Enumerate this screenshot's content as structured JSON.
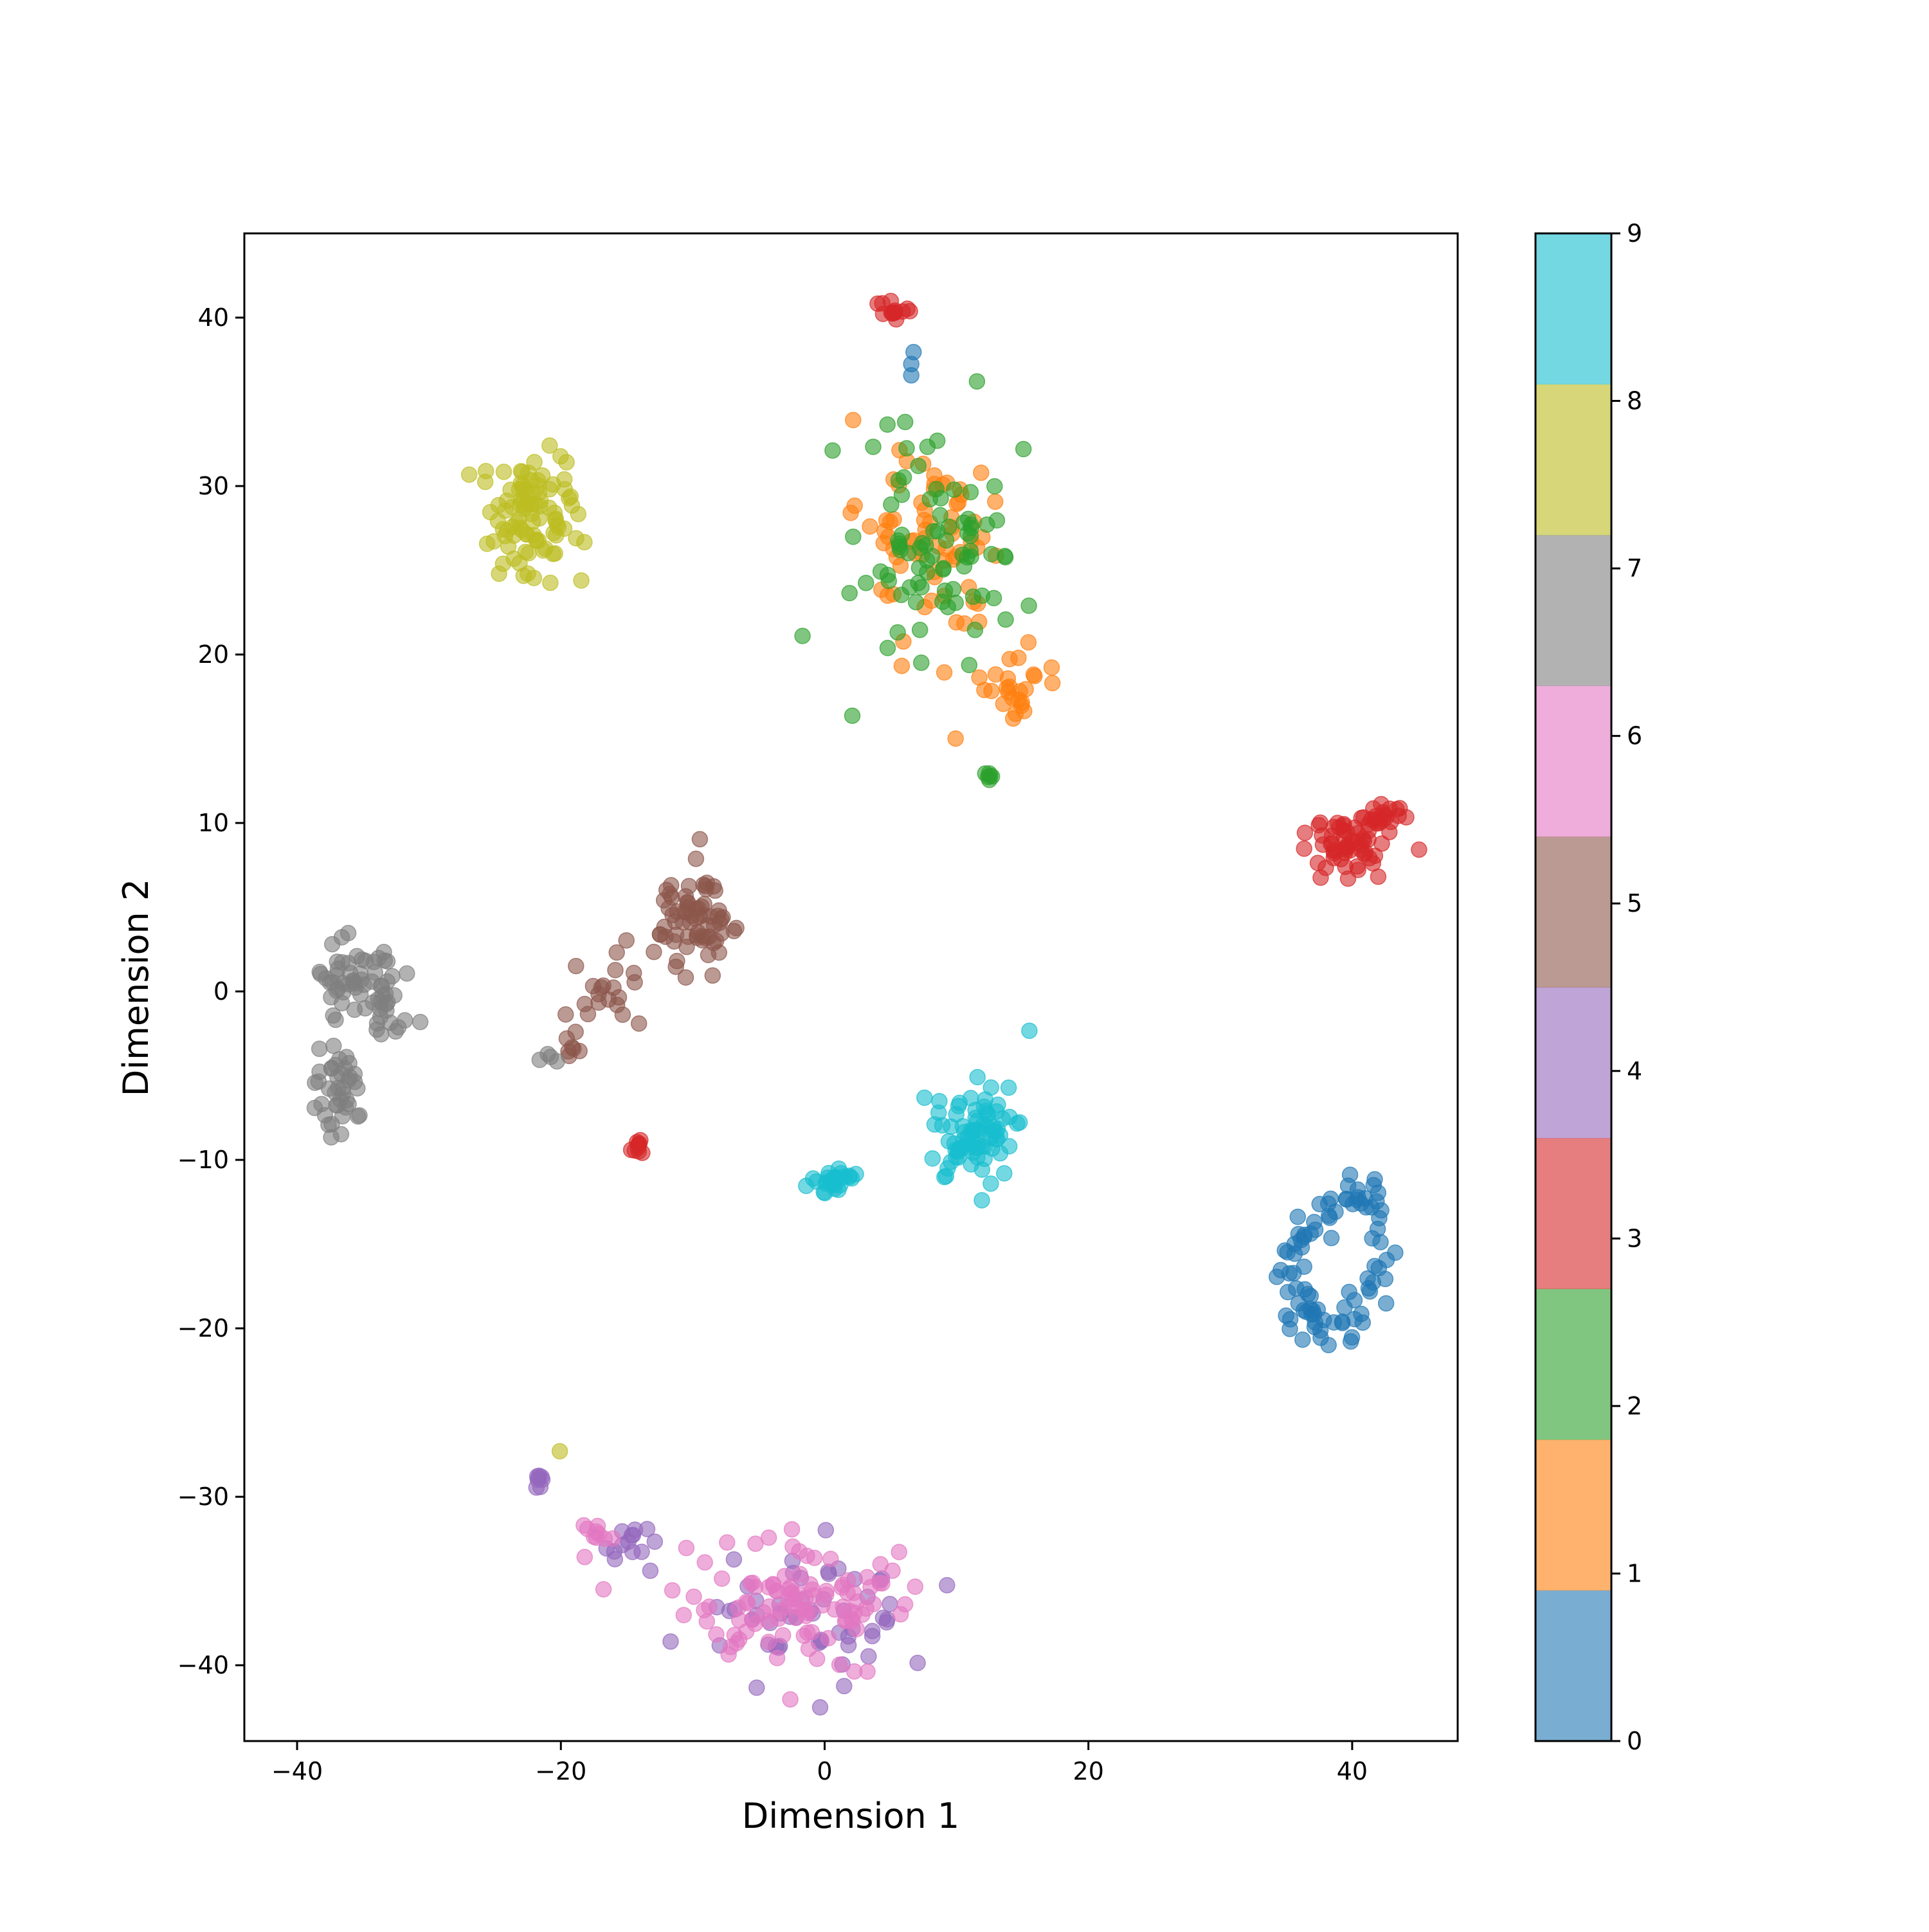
{
  "chart_data": {
    "type": "scatter",
    "title": "",
    "xlabel": "Dimension 1",
    "ylabel": "Dimension 2",
    "xlim": [
      -44,
      48
    ],
    "ylim": [
      -44.5,
      45
    ],
    "xticks": [
      -40,
      -20,
      0,
      20,
      40
    ],
    "xtick_labels": [
      "−40",
      "−20",
      "0",
      "20",
      "40"
    ],
    "yticks": [
      -40,
      -30,
      -20,
      -10,
      0,
      10,
      20,
      30,
      40
    ],
    "ytick_labels": [
      "−40",
      "−30",
      "−20",
      "−10",
      "0",
      "10",
      "20",
      "30",
      "40"
    ],
    "grid": false,
    "colormap": "tab10",
    "point_alpha": 0.6,
    "colorbar": {
      "range": [
        0,
        9
      ],
      "ticks": [
        0,
        1,
        2,
        3,
        4,
        5,
        6,
        7,
        8,
        9
      ],
      "tick_labels": [
        "0",
        "1",
        "2",
        "3",
        "4",
        "5",
        "6",
        "7",
        "8",
        "9"
      ],
      "colors": [
        "#1f77b4",
        "#ff7f0e",
        "#2ca02c",
        "#d62728",
        "#9467bd",
        "#8c564b",
        "#e377c2",
        "#7f7f7f",
        "#bcbd22",
        "#17becf"
      ]
    },
    "clusters": [
      {
        "class": 0,
        "cx": 39.0,
        "cy": -16.0,
        "sx": 1.8,
        "sy": 2.7,
        "n": 90,
        "note_shape": "ring"
      },
      {
        "class": 0,
        "cx": 6.6,
        "cy": 37.2,
        "sx": 0.15,
        "sy": 0.4,
        "n": 3
      },
      {
        "class": 1,
        "cx": 8.5,
        "cy": 26.5,
        "sx": 3.0,
        "sy": 3.3,
        "n": 70
      },
      {
        "class": 1,
        "cx": 14.5,
        "cy": 18.0,
        "sx": 1.2,
        "sy": 1.0,
        "n": 25
      },
      {
        "class": 1,
        "cx": 2.0,
        "cy": 28.3,
        "sx": 0.1,
        "sy": 0.1,
        "n": 1
      },
      {
        "class": 2,
        "cx": 8.5,
        "cy": 26.5,
        "sx": 3.0,
        "sy": 3.5,
        "n": 85
      },
      {
        "class": 2,
        "cx": 12.4,
        "cy": 12.8,
        "sx": 0.15,
        "sy": 0.15,
        "n": 6
      },
      {
        "class": 3,
        "cx": 5.3,
        "cy": 40.2,
        "sx": 0.5,
        "sy": 0.35,
        "n": 14
      },
      {
        "class": 3,
        "cx": 39.5,
        "cy": 8.8,
        "sx": 1.7,
        "sy": 1.0,
        "n": 55
      },
      {
        "class": 3,
        "cx": 42.2,
        "cy": 10.4,
        "sx": 0.9,
        "sy": 0.45,
        "n": 20
      },
      {
        "class": 3,
        "cx": -14.3,
        "cy": -9.3,
        "sx": 0.25,
        "sy": 0.3,
        "n": 10
      },
      {
        "class": 4,
        "cx": -21.7,
        "cy": -29.0,
        "sx": 0.2,
        "sy": 0.3,
        "n": 8
      },
      {
        "class": 4,
        "cx": -15.0,
        "cy": -32.8,
        "sx": 1.0,
        "sy": 0.6,
        "n": 14
      },
      {
        "class": 4,
        "cx": -1.0,
        "cy": -36.8,
        "sx": 4.2,
        "sy": 2.0,
        "n": 55
      },
      {
        "class": 5,
        "cx": -9.8,
        "cy": 4.3,
        "sx": 1.3,
        "sy": 1.5,
        "n": 70
      },
      {
        "class": 5,
        "cx": -16.5,
        "cy": -0.5,
        "sx": 1.4,
        "sy": 1.2,
        "n": 20
      },
      {
        "class": 5,
        "cx": -19.2,
        "cy": -3.5,
        "sx": 0.3,
        "sy": 0.35,
        "n": 6
      },
      {
        "class": 6,
        "cx": -2.5,
        "cy": -36.2,
        "sx": 5.0,
        "sy": 2.0,
        "n": 110
      },
      {
        "class": 6,
        "cx": -17.5,
        "cy": -32.5,
        "sx": 0.8,
        "sy": 0.5,
        "n": 10
      },
      {
        "class": 7,
        "cx": -35.0,
        "cy": 0.6,
        "sx": 1.7,
        "sy": 1.2,
        "n": 55
      },
      {
        "class": 7,
        "cx": -33.0,
        "cy": -2.0,
        "sx": 1.0,
        "sy": 1.5,
        "n": 12
      },
      {
        "class": 7,
        "cx": -37.0,
        "cy": -6.3,
        "sx": 0.9,
        "sy": 1.3,
        "n": 40
      },
      {
        "class": 7,
        "cx": -21.0,
        "cy": -4.0,
        "sx": 0.4,
        "sy": 0.3,
        "n": 4
      },
      {
        "class": 8,
        "cx": -22.5,
        "cy": 28.3,
        "sx": 2.0,
        "sy": 1.8,
        "n": 95
      },
      {
        "class": 8,
        "cx": -20.1,
        "cy": -27.3,
        "sx": 0.05,
        "sy": 0.05,
        "n": 1
      },
      {
        "class": 9,
        "cx": 11.5,
        "cy": -8.5,
        "sx": 1.5,
        "sy": 1.3,
        "n": 80
      },
      {
        "class": 9,
        "cx": 0.8,
        "cy": -11.2,
        "sx": 0.7,
        "sy": 0.45,
        "n": 30
      },
      {
        "class": 9,
        "cx": 15.5,
        "cy": -2.3,
        "sx": 0.05,
        "sy": 0.05,
        "n": 1
      }
    ]
  }
}
